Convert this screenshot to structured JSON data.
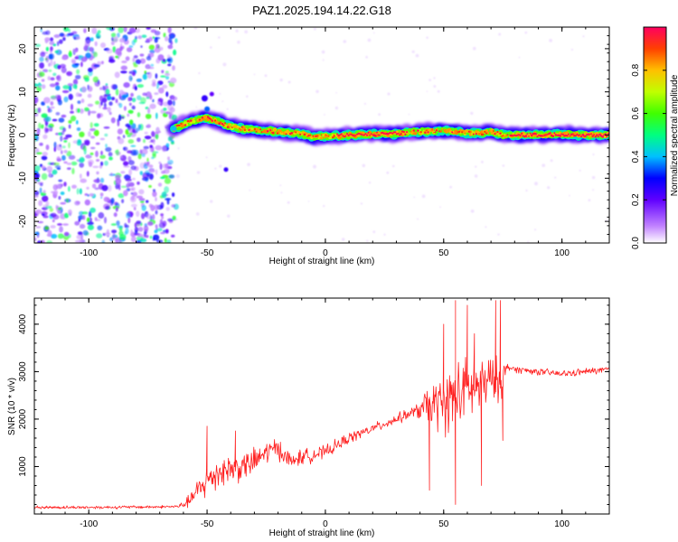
{
  "title": "PAZ1.2025.194.14.22.G18",
  "chart_data": [
    {
      "type": "heatmap",
      "xlabel": "Height of straight line (km)",
      "ylabel": "Frequency (Hz)",
      "xlim": [
        -123,
        120
      ],
      "ylim": [
        -25,
        25
      ],
      "xticks": [
        -100,
        -50,
        0,
        50,
        100
      ],
      "yticks": [
        -20,
        -10,
        0,
        10,
        20
      ],
      "colorbar": {
        "label": "Normalized spectral amplitude",
        "range": [
          0,
          1
        ],
        "ticks": [
          0.0,
          0.2,
          0.4,
          0.6,
          0.8
        ]
      },
      "ridge": {
        "x": [
          -64,
          -60,
          -55,
          -50,
          -45,
          -40,
          -35,
          -30,
          -25,
          -20,
          -15,
          -10,
          -5,
          0,
          10,
          20,
          30,
          40,
          50,
          55,
          60,
          65,
          70,
          75,
          80,
          90,
          100,
          110,
          120
        ],
        "freq": [
          1.5,
          2.5,
          3.5,
          4.0,
          3.0,
          2.0,
          1.5,
          1.2,
          1.0,
          0.8,
          0.5,
          0.3,
          -0.5,
          -0.3,
          0.0,
          0.2,
          0.3,
          0.8,
          1.0,
          0.8,
          0.5,
          0.4,
          0.8,
          0.0,
          0.0,
          0.0,
          0.2,
          0.0,
          0.0
        ],
        "peak_amplitude": 1.0
      },
      "noise_region_x": [
        -123,
        -63
      ],
      "noise_amplitude_range": [
        0.0,
        0.55
      ]
    },
    {
      "type": "line",
      "xlabel": "Height of straight line (km)",
      "ylabel": "SNR (10 * v/v)",
      "xlim": [
        -123,
        120
      ],
      "ylim": [
        0,
        4550
      ],
      "xticks": [
        -100,
        -50,
        0,
        50,
        100
      ],
      "yticks": [
        1000,
        2000,
        3000,
        4000
      ],
      "color": "#ff2020",
      "trend": {
        "x": [
          -123,
          -100,
          -70,
          -62,
          -58,
          -50,
          -45,
          -40,
          -35,
          -30,
          -25,
          -20,
          -15,
          -10,
          -5,
          0,
          10,
          20,
          30,
          40,
          45,
          50,
          55,
          60,
          65,
          70,
          75,
          77,
          80,
          90,
          100,
          110,
          120
        ],
        "y": [
          140,
          140,
          150,
          160,
          250,
          700,
          900,
          950,
          1000,
          1100,
          1300,
          1400,
          1100,
          1200,
          1250,
          1300,
          1600,
          1800,
          2000,
          2200,
          2300,
          2300,
          2500,
          2600,
          2700,
          2800,
          2850,
          3100,
          3050,
          3000,
          2950,
          3000,
          3050
        ]
      },
      "noise_amplitude": {
        "x": [
          -123,
          -62,
          -55,
          -50,
          -30,
          -10,
          20,
          38,
          45,
          55,
          65,
          75,
          77,
          120
        ],
        "amp": [
          40,
          40,
          250,
          450,
          350,
          200,
          120,
          150,
          600,
          900,
          750,
          500,
          90,
          90
        ]
      },
      "spikes": [
        {
          "x": -50,
          "y": 1850
        },
        {
          "x": -38,
          "y": 1750
        },
        {
          "x": 44,
          "y": 500
        },
        {
          "x": 50,
          "y": 4000
        },
        {
          "x": 55,
          "y": 200
        },
        {
          "x": 55,
          "y": 4500
        },
        {
          "x": 60,
          "y": 4400
        },
        {
          "x": 63,
          "y": 3800
        },
        {
          "x": 66,
          "y": 600
        },
        {
          "x": 72,
          "y": 4500
        },
        {
          "x": 74,
          "y": 4500
        },
        {
          "x": 75,
          "y": 1550
        }
      ]
    }
  ]
}
